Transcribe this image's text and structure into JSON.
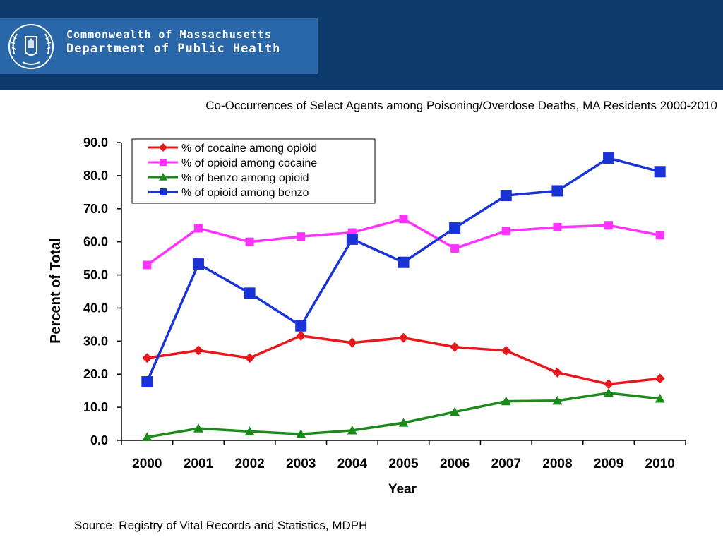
{
  "header": {
    "logo_line1": "Commonwealth of Massachusetts",
    "logo_line2": "Department of Public Health"
  },
  "colors": {
    "header_band": "#0b3a6b",
    "logo_box": "#2a67a8"
  },
  "chart_data": {
    "type": "line",
    "title": "Co-Occurrences of Select Agents among Poisoning/Overdose Deaths, MA Residents 2000-2010",
    "xlabel": "Year",
    "ylabel": "Percent of Total",
    "categories": [
      "2000",
      "2001",
      "2002",
      "2003",
      "2004",
      "2005",
      "2006",
      "2007",
      "2008",
      "2009",
      "2010"
    ],
    "ylim": [
      0,
      90
    ],
    "yticks": [
      "0.0",
      "10.0",
      "20.0",
      "30.0",
      "40.0",
      "50.0",
      "60.0",
      "70.0",
      "80.0",
      "90.0"
    ],
    "grid": false,
    "legend_position": "top-left",
    "series": [
      {
        "name": "% of cocaine among opioid",
        "color": "#e8181d",
        "marker": "diamond",
        "values": [
          24.9,
          27.2,
          24.9,
          31.6,
          29.5,
          31.0,
          28.2,
          27.1,
          20.5,
          17.0,
          18.7
        ]
      },
      {
        "name": "% of opioid among cocaine",
        "color": "#ff33ff",
        "marker": "square",
        "values": [
          53.0,
          64.1,
          60.0,
          61.6,
          62.8,
          66.9,
          58.0,
          63.3,
          64.4,
          65.0,
          62.0
        ]
      },
      {
        "name": "% of benzo among opioid",
        "color": "#1b8a1b",
        "marker": "triangle",
        "values": [
          1.0,
          3.6,
          2.7,
          1.9,
          3.0,
          5.3,
          8.6,
          11.8,
          12.0,
          14.3,
          12.6
        ]
      },
      {
        "name": "% of opioid among benzo",
        "color": "#1a33d6",
        "marker": "square",
        "values": [
          17.7,
          53.3,
          44.5,
          34.6,
          60.8,
          53.8,
          64.2,
          74.0,
          75.4,
          85.3,
          81.2
        ]
      }
    ]
  },
  "footer": {
    "source": "Source: Registry of Vital Records and Statistics, MDPH"
  }
}
